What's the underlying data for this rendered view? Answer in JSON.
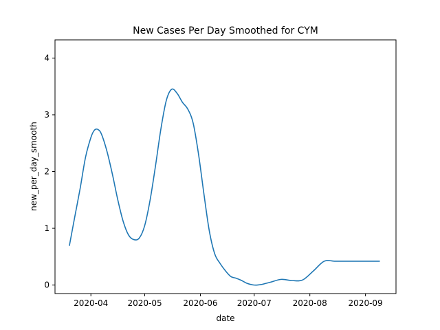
{
  "chart_data": {
    "type": "line",
    "title": "New Cases Per Day Smoothed for CYM",
    "xlabel": "date",
    "ylabel": "new_per_day_smooth",
    "x_ticks": [
      "2020-04",
      "2020-05",
      "2020-06",
      "2020-07",
      "2020-08",
      "2020-09"
    ],
    "y_ticks": [
      "0",
      "1",
      "2",
      "3",
      "4"
    ],
    "ylim": [
      -0.15,
      4.32
    ],
    "xlim": [
      "2020-03-12",
      "2020-09-18"
    ],
    "grid": false,
    "line_color": "#1f77b4",
    "series": [
      {
        "x": [
          "2020-03-20",
          "2020-03-23",
          "2020-03-26",
          "2020-03-29",
          "2020-04-01",
          "2020-04-03",
          "2020-04-05",
          "2020-04-07",
          "2020-04-10",
          "2020-04-13",
          "2020-04-16",
          "2020-04-19",
          "2020-04-22",
          "2020-04-25",
          "2020-04-28",
          "2020-05-01",
          "2020-05-04",
          "2020-05-07",
          "2020-05-10",
          "2020-05-13",
          "2020-05-16",
          "2020-05-19",
          "2020-05-22",
          "2020-05-25",
          "2020-05-28",
          "2020-05-31",
          "2020-06-03",
          "2020-06-06",
          "2020-06-09",
          "2020-06-12",
          "2020-06-15",
          "2020-06-18",
          "2020-06-21",
          "2020-06-24",
          "2020-06-27",
          "2020-07-01",
          "2020-07-05",
          "2020-07-10",
          "2020-07-16",
          "2020-07-22",
          "2020-07-28",
          "2020-08-03",
          "2020-08-09",
          "2020-08-15",
          "2020-08-20",
          "2020-08-25",
          "2020-08-30",
          "2020-09-03",
          "2020-09-06",
          "2020-09-09"
        ],
        "y": [
          0.69,
          1.2,
          1.7,
          2.25,
          2.6,
          2.73,
          2.74,
          2.65,
          2.35,
          1.95,
          1.5,
          1.12,
          0.88,
          0.8,
          0.83,
          1.05,
          1.5,
          2.1,
          2.75,
          3.25,
          3.45,
          3.38,
          3.22,
          3.1,
          2.85,
          2.3,
          1.6,
          0.95,
          0.55,
          0.38,
          0.25,
          0.15,
          0.12,
          0.08,
          0.03,
          0.0,
          0.01,
          0.05,
          0.1,
          0.08,
          0.09,
          0.25,
          0.42,
          0.42,
          0.42,
          0.42,
          0.42,
          0.42,
          0.42,
          0.42
        ]
      }
    ]
  }
}
